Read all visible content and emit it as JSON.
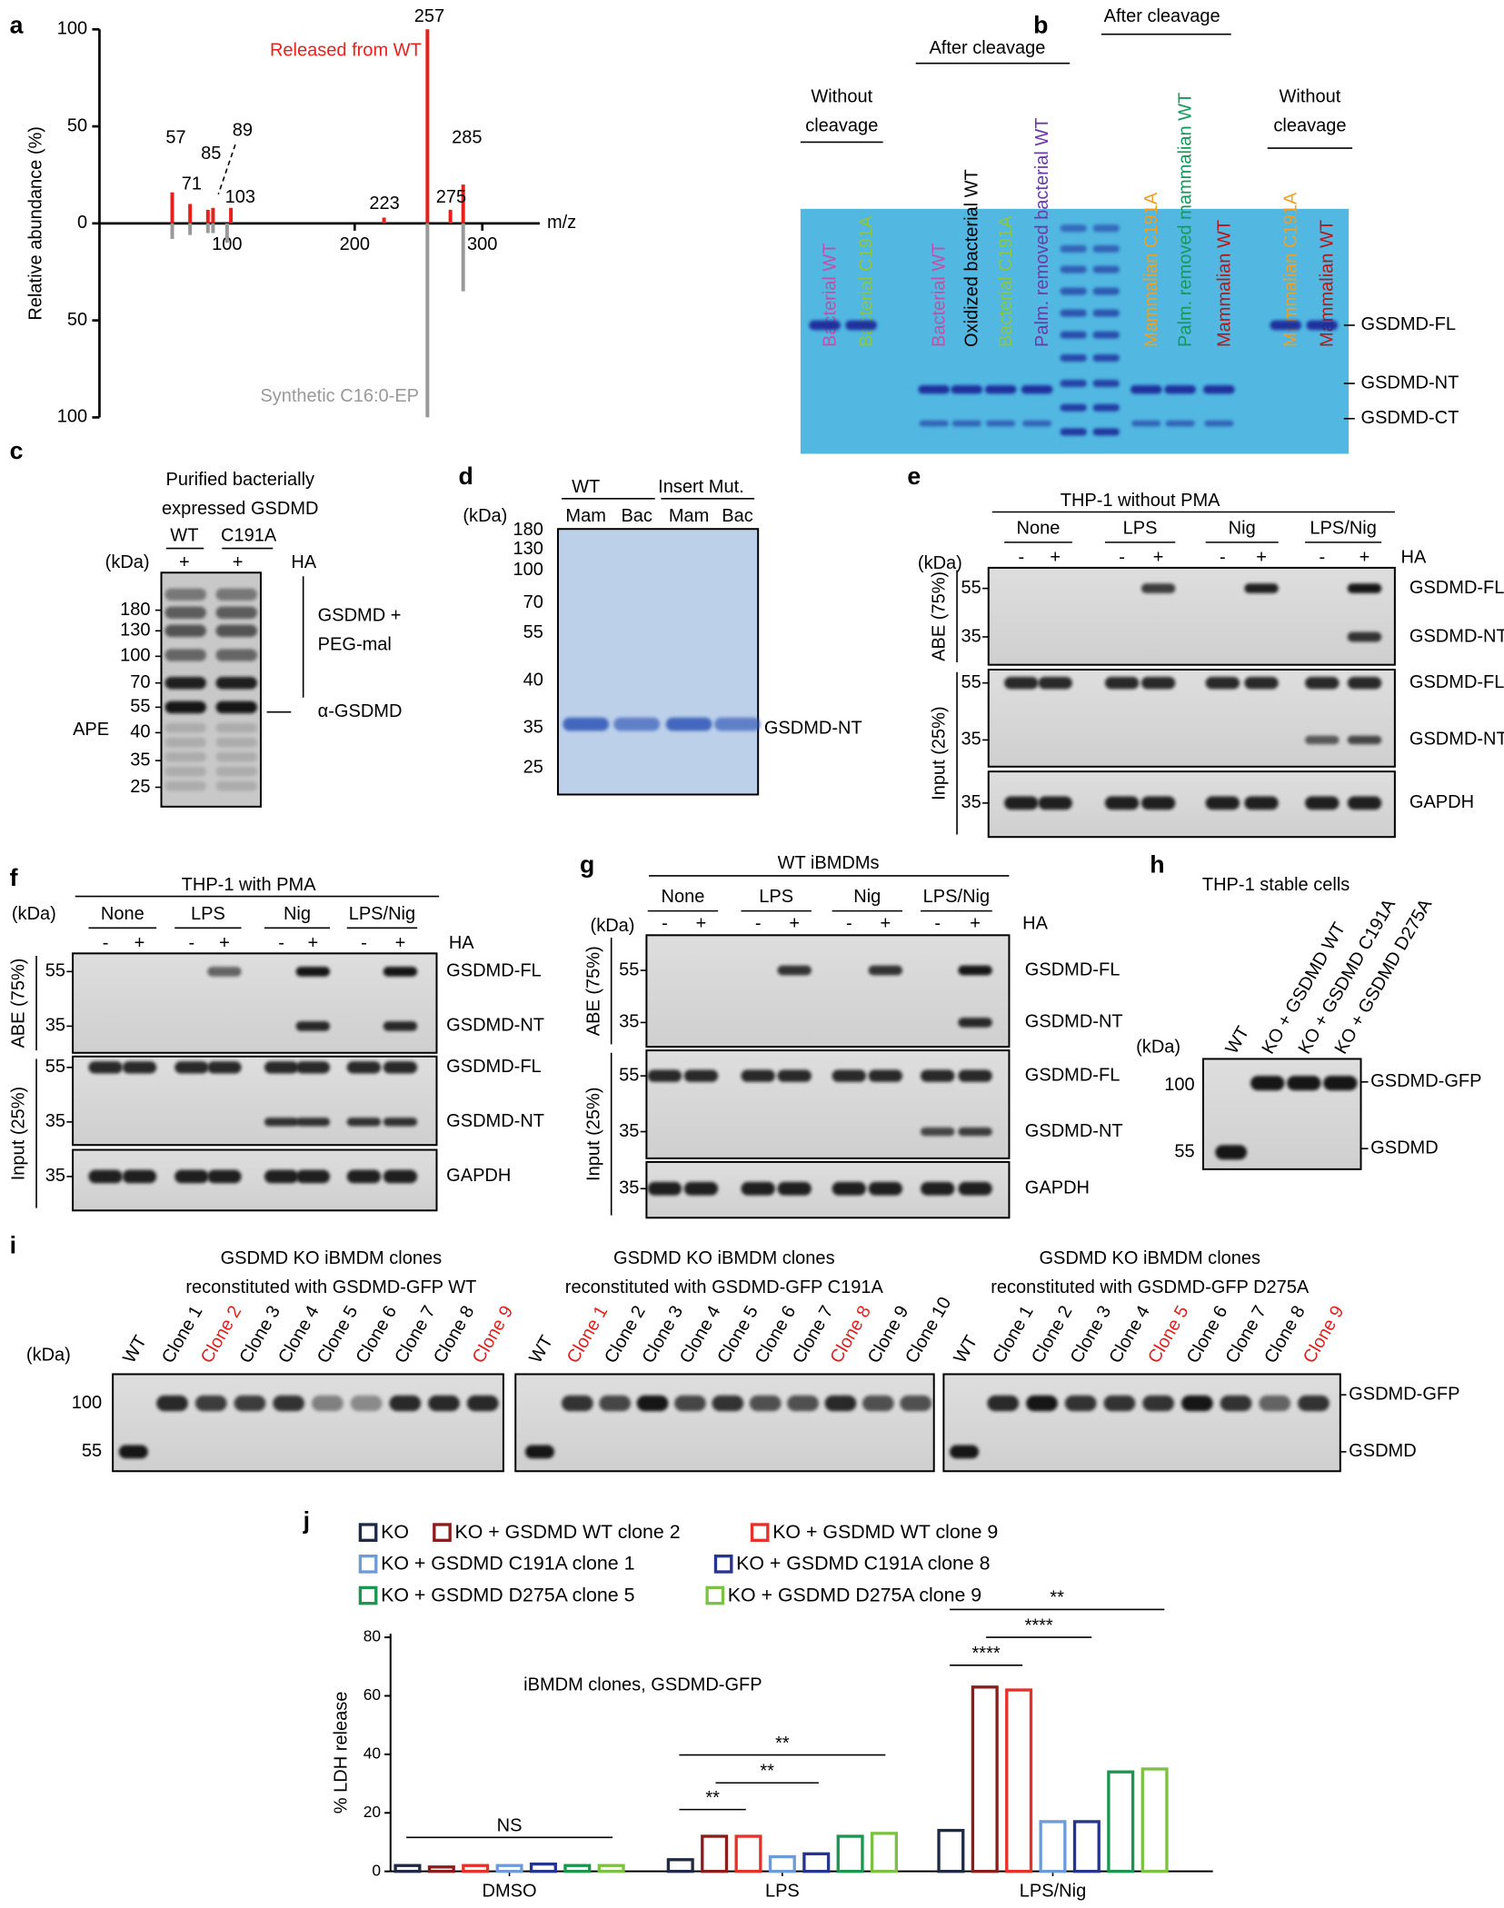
{
  "panel_letters": [
    "a",
    "b",
    "c",
    "d",
    "e",
    "f",
    "g",
    "h",
    "i",
    "j"
  ],
  "chart_data": [
    {
      "type": "stem",
      "x_label": "m/z",
      "y_label": "Relative abundance (%)",
      "xlim": [
        0,
        345
      ],
      "xticks": [
        100,
        200,
        300
      ],
      "ylim": [
        -100,
        100
      ],
      "yticks": [
        {
          "value": -100,
          "label": "100"
        },
        {
          "value": -50,
          "label": "50"
        },
        0,
        50,
        100
      ],
      "series": [
        {
          "name": "Released from WT",
          "color": "#e8201c",
          "x": [
            57,
            71,
            85,
            89,
            103,
            223,
            257,
            275,
            285
          ],
          "values": [
            16,
            10,
            7,
            8,
            8,
            3,
            100,
            7,
            20
          ]
        },
        {
          "name": "Synthetic C16:0-EP",
          "color": "#999999",
          "x": [
            57,
            71,
            85,
            89,
            100,
            257,
            285
          ],
          "values": [
            -8,
            -6,
            -5,
            -5,
            -10,
            -100,
            -35
          ]
        }
      ]
    },
    {
      "type": "bar",
      "categories": [
        "DMSO",
        "LPS",
        "LPS/Nig"
      ],
      "y_label": "% LDH release",
      "annotation": "iBMDM clones, GSDMD-GFP",
      "ylim": [
        0,
        80
      ],
      "yticks": [
        0,
        20,
        40,
        60,
        80
      ],
      "series": [
        {
          "name": "KO",
          "color": "#1f2a44",
          "values": [
            2,
            4,
            14
          ]
        },
        {
          "name": "KO + GSDMD WT clone 2",
          "color": "#8b1c1c",
          "values": [
            1.5,
            12,
            63
          ]
        },
        {
          "name": "KO + GSDMD WT clone 9",
          "color": "#e8302a",
          "values": [
            2,
            12,
            62
          ]
        },
        {
          "name": "KO + GSDMD C191A clone 1",
          "color": "#6d9bd8",
          "values": [
            2,
            5,
            17
          ]
        },
        {
          "name": "KO + GSDMD C191A clone 8",
          "color": "#26348f",
          "values": [
            2.5,
            6,
            17
          ]
        },
        {
          "name": "KO + GSDMD D275A clone 5",
          "color": "#1a9650",
          "values": [
            2,
            12,
            34
          ]
        },
        {
          "name": "KO + GSDMD D275A clone 9",
          "color": "#7cc242",
          "values": [
            2,
            13,
            35
          ]
        }
      ],
      "significance": [
        "NS",
        "**",
        "**",
        "**",
        "****",
        "****",
        "**"
      ]
    }
  ],
  "panels": {
    "b": {
      "headers": [
        [
          "Without",
          "cleavage"
        ],
        [
          "After cleavage"
        ],
        [
          "After cleavage"
        ],
        [
          "Without",
          "cleavage"
        ]
      ],
      "lanes": [
        {
          "label": "Bacterial WT",
          "color": "#c050a8"
        },
        {
          "label": "Bacterial C191A",
          "color": "#8cc63f"
        },
        {
          "label": "Bacterial WT",
          "color": "#c050a8"
        },
        {
          "label": "Oxidized bacterial WT",
          "color": "#000000"
        },
        {
          "label": "Bacterial C191A",
          "color": "#8cc63f"
        },
        {
          "label": "Palm. removed bacterial WT",
          "color": "#6a3aa8"
        },
        {
          "label": "Mammalian C191A",
          "color": "#f0a020"
        },
        {
          "label": "Palm. removed mammalian WT",
          "color": "#17985a"
        },
        {
          "label": "Mammalian WT",
          "color": "#b01a1a"
        },
        {
          "label": "Mammalian C191A",
          "color": "#f0a020"
        },
        {
          "label": "Mammalian WT",
          "color": "#b01a1a"
        }
      ],
      "markers": [
        "GSDMD-FL",
        "GSDMD-NT",
        "GSDMD-CT"
      ]
    },
    "c": {
      "title": [
        "Purified bacterially",
        "expressed GSDMD"
      ],
      "groups": [
        "WT",
        "C191A"
      ],
      "kda": "(kDa)",
      "treat": [
        "+",
        "+"
      ],
      "treat_label": "HA",
      "ladder": [
        180,
        130,
        100,
        70,
        55,
        40,
        35,
        25
      ],
      "annotations": [
        [
          "GSDMD +",
          "PEG-mal"
        ],
        [
          "α-GSDMD"
        ]
      ],
      "side": "APE"
    },
    "d": {
      "groups": [
        "WT",
        "Insert Mut."
      ],
      "kda": "(kDa)",
      "lanes": [
        "Mam",
        "Bac",
        "Mam",
        "Bac"
      ],
      "ladder": [
        180,
        130,
        100,
        70,
        55,
        40,
        35,
        25
      ],
      "marker": "GSDMD-NT"
    },
    "e": {
      "title": "THP-1 without PMA",
      "kda": "(kDa)",
      "groups": [
        "None",
        "LPS",
        "Nig",
        "LPS/Nig"
      ],
      "treat": [
        "-",
        "+",
        "-",
        "+",
        "-",
        "+",
        "-",
        "+"
      ],
      "treat_label": "HA",
      "sections": [
        "ABE (75%)",
        "Input (25%)"
      ],
      "blots": [
        {
          "ladder": [
            55,
            35
          ],
          "markers": [
            "GSDMD-FL",
            "GSDMD-NT"
          ]
        },
        {
          "ladder": [
            55,
            35
          ],
          "markers": [
            "GSDMD-FL",
            "GSDMD-NT"
          ]
        },
        {
          "ladder": [
            35
          ],
          "markers": [
            "GAPDH"
          ]
        }
      ]
    },
    "f": {
      "title": "THP-1 with PMA",
      "kda": "(kDa)",
      "groups": [
        "None",
        "LPS",
        "Nig",
        "LPS/Nig"
      ],
      "treat": [
        "-",
        "+",
        "-",
        "+",
        "-",
        "+",
        "-",
        "+"
      ],
      "treat_label": "HA",
      "sections": [
        "ABE (75%)",
        "Input (25%)"
      ],
      "blots": [
        {
          "ladder": [
            55,
            35
          ],
          "markers": [
            "GSDMD-FL",
            "GSDMD-NT"
          ]
        },
        {
          "ladder": [
            55,
            35
          ],
          "markers": [
            "GSDMD-FL",
            "GSDMD-NT"
          ]
        },
        {
          "ladder": [
            35
          ],
          "markers": [
            "GAPDH"
          ]
        }
      ]
    },
    "g": {
      "title": "WT iBMDMs",
      "kda": "(kDa)",
      "groups": [
        "None",
        "LPS",
        "Nig",
        "LPS/Nig"
      ],
      "treat": [
        "-",
        "+",
        "-",
        "+",
        "-",
        "+",
        "-",
        "+"
      ],
      "treat_label": "HA",
      "sections": [
        "ABE (75%)",
        "Input (25%)"
      ],
      "blots": [
        {
          "ladder": [
            55,
            35
          ],
          "markers": [
            "GSDMD-FL",
            "GSDMD-NT"
          ]
        },
        {
          "ladder": [
            55,
            35
          ],
          "markers": [
            "GSDMD-FL",
            "GSDMD-NT"
          ]
        },
        {
          "ladder": [
            35
          ],
          "markers": [
            "GAPDH"
          ]
        }
      ]
    },
    "h": {
      "title": "THP-1 stable cells",
      "lanes": [
        "WT",
        "KO + GSDMD WT",
        "KO + GSDMD C191A",
        "KO + GSDMD D275A"
      ],
      "kda": "(kDa)",
      "ladder": [
        100,
        55
      ],
      "markers": [
        "GSDMD-GFP",
        "GSDMD"
      ]
    },
    "i": {
      "kda": "(kDa)",
      "ladder": [
        100,
        55
      ],
      "markers": [
        "GSDMD-GFP",
        "GSDMD"
      ],
      "blots": [
        {
          "title": [
            "GSDMD KO iBMDM clones",
            "reconstituted with GSDMD-GFP WT"
          ],
          "lanes": [
            {
              "label": "WT",
              "color": "#000000"
            },
            {
              "label": "Clone 1",
              "color": "#000000"
            },
            {
              "label": "Clone 2",
              "color": "#e02020"
            },
            {
              "label": "Clone 3",
              "color": "#000000"
            },
            {
              "label": "Clone 4",
              "color": "#000000"
            },
            {
              "label": "Clone 5",
              "color": "#000000"
            },
            {
              "label": "Clone 6",
              "color": "#000000"
            },
            {
              "label": "Clone 7",
              "color": "#000000"
            },
            {
              "label": "Clone 8",
              "color": "#000000"
            },
            {
              "label": "Clone 9",
              "color": "#e02020"
            }
          ]
        },
        {
          "title": [
            "GSDMD KO iBMDM clones",
            "reconstituted with GSDMD-GFP C191A"
          ],
          "lanes": [
            {
              "label": "WT",
              "color": "#000000"
            },
            {
              "label": "Clone 1",
              "color": "#e02020"
            },
            {
              "label": "Clone 2",
              "color": "#000000"
            },
            {
              "label": "Clone 3",
              "color": "#000000"
            },
            {
              "label": "Clone 4",
              "color": "#000000"
            },
            {
              "label": "Clone 5",
              "color": "#000000"
            },
            {
              "label": "Clone 6",
              "color": "#000000"
            },
            {
              "label": "Clone 7",
              "color": "#000000"
            },
            {
              "label": "Clone 8",
              "color": "#e02020"
            },
            {
              "label": "Clone 9",
              "color": "#000000"
            },
            {
              "label": "Clone 10",
              "color": "#000000"
            }
          ]
        },
        {
          "title": [
            "GSDMD KO iBMDM clones",
            "reconstituted with GSDMD-GFP D275A"
          ],
          "lanes": [
            {
              "label": "WT",
              "color": "#000000"
            },
            {
              "label": "Clone 1",
              "color": "#000000"
            },
            {
              "label": "Clone 2",
              "color": "#000000"
            },
            {
              "label": "Clone 3",
              "color": "#000000"
            },
            {
              "label": "Clone 4",
              "color": "#000000"
            },
            {
              "label": "Clone 5",
              "color": "#e02020"
            },
            {
              "label": "Clone 6",
              "color": "#000000"
            },
            {
              "label": "Clone 7",
              "color": "#000000"
            },
            {
              "label": "Clone 8",
              "color": "#000000"
            },
            {
              "label": "Clone 9",
              "color": "#e02020"
            }
          ]
        }
      ]
    }
  }
}
